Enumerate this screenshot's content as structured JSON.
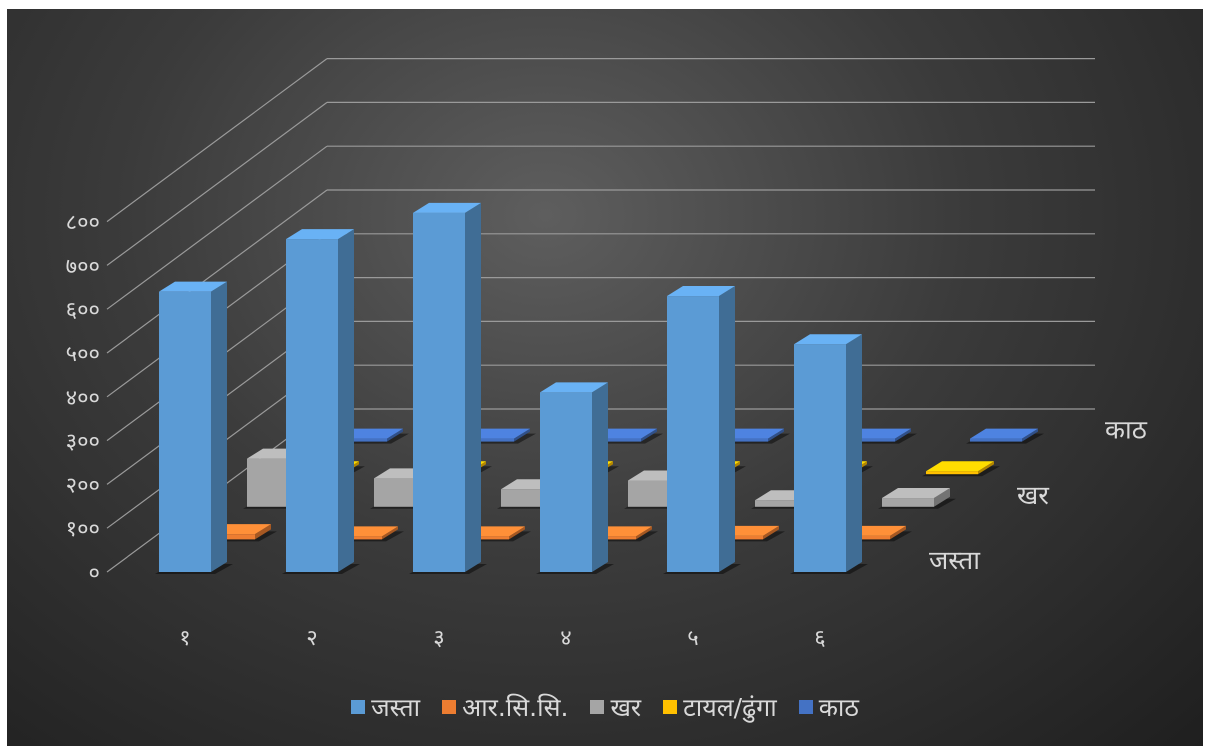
{
  "chart_data": {
    "type": "bar",
    "variant": "3d-column",
    "title": "",
    "xlabel": "",
    "ylabel": "",
    "categories": [
      "१",
      "२",
      "३",
      "४",
      "५",
      "६"
    ],
    "y_ticks": [
      "०",
      "१००",
      "२००",
      "३००",
      "४००",
      "५००",
      "६००",
      "७००",
      "८००"
    ],
    "ylim": [
      0,
      800
    ],
    "grid": true,
    "legend_position": "bottom",
    "depth_axis_labels": [
      "जस्ता",
      "खर",
      "काठ"
    ],
    "series": [
      {
        "name": "जस्ता",
        "color": "#5B9BD5",
        "values": [
          640,
          760,
          820,
          410,
          630,
          520
        ]
      },
      {
        "name": "आर.सि.सि.",
        "color": "#ED7D31",
        "values": [
          12,
          0,
          5,
          0,
          8,
          8
        ]
      },
      {
        "name": "खर",
        "color": "#A5A5A5",
        "values": [
          110,
          65,
          40,
          60,
          15,
          20
        ]
      },
      {
        "name": "टायल/ढुंगा",
        "color": "#FFC000",
        "values": [
          0,
          0,
          0,
          0,
          0,
          0
        ]
      },
      {
        "name": "काठ",
        "color": "#4472C4",
        "values": [
          5,
          0,
          0,
          0,
          5,
          5
        ]
      }
    ]
  },
  "legend": [
    {
      "label": "जस्ता",
      "color": "#5B9BD5"
    },
    {
      "label": "आर.सि.सि.",
      "color": "#ED7D31"
    },
    {
      "label": "खर",
      "color": "#A5A5A5"
    },
    {
      "label": "टायल/ढुंगा",
      "color": "#FFC000"
    },
    {
      "label": "काठ",
      "color": "#4472C4"
    }
  ]
}
